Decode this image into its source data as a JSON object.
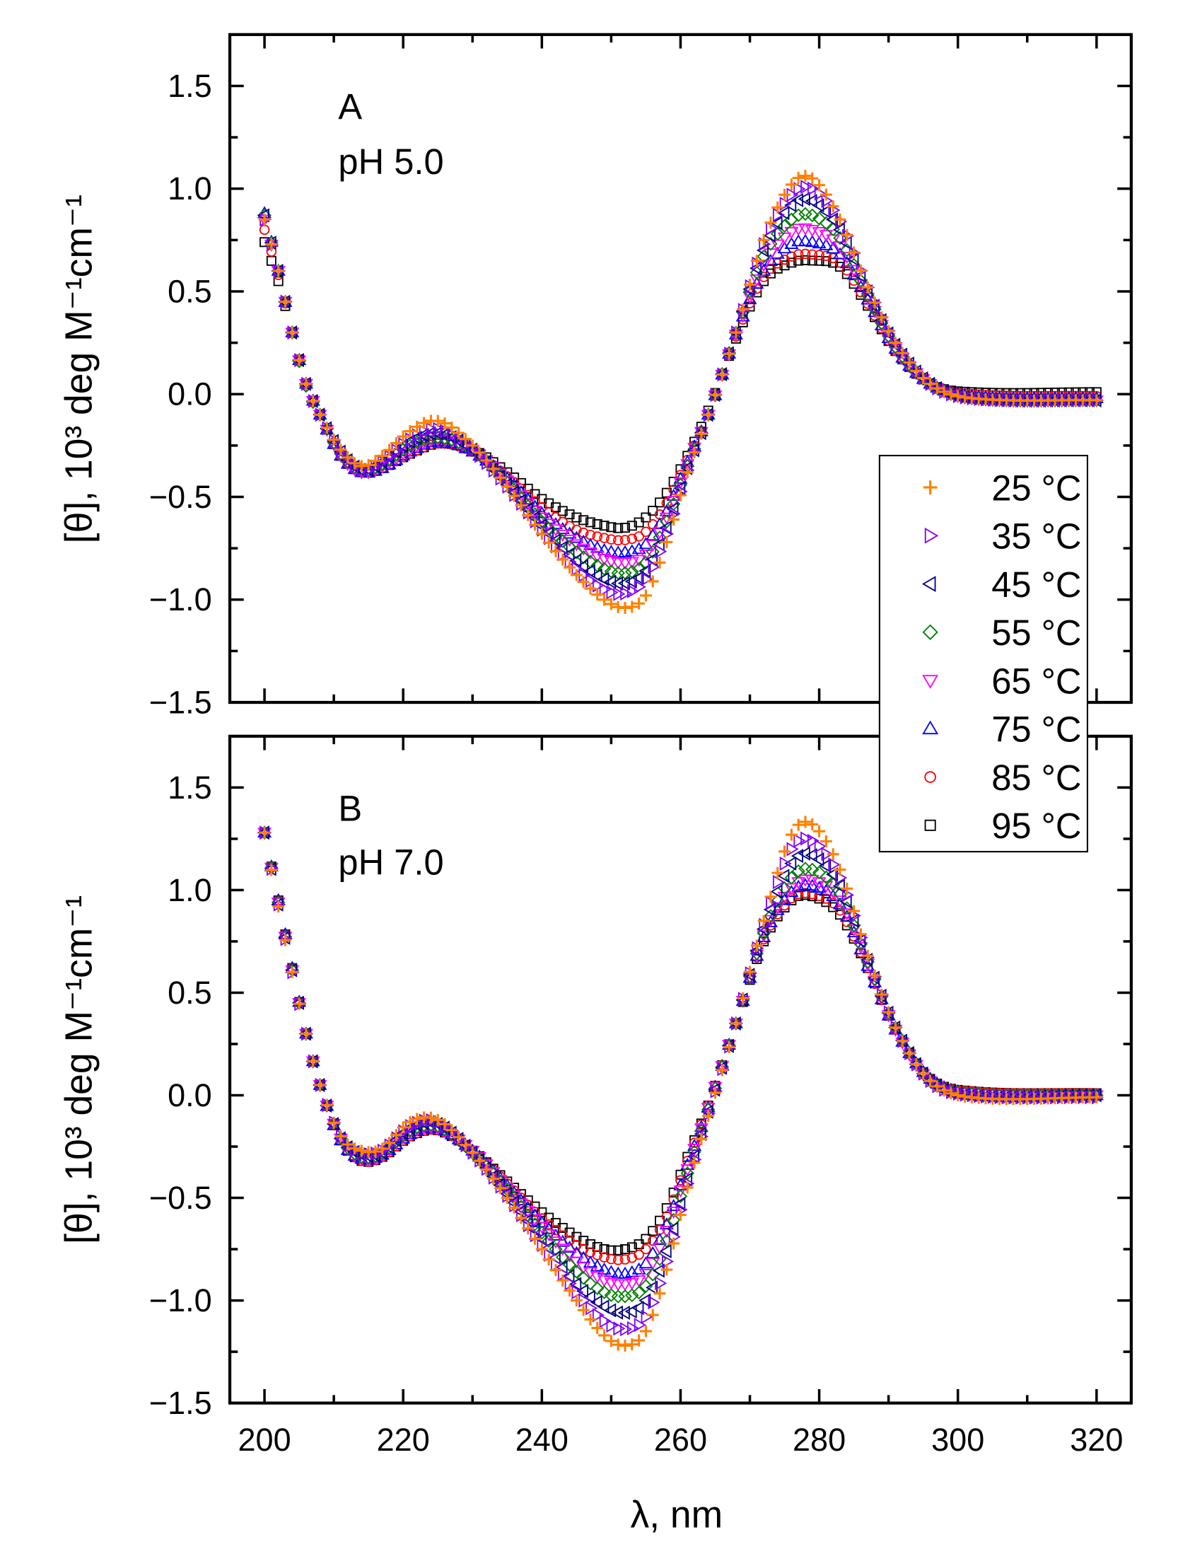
{
  "chart_data": {
    "type": "scatter",
    "xlabel": "λ, nm",
    "ylabel": "[θ], 10³ deg M⁻¹cm⁻¹",
    "xlim": [
      195,
      325
    ],
    "ylim": [
      -1.5,
      1.75
    ],
    "xticks": [
      "200",
      "220",
      "240",
      "260",
      "280",
      "300",
      "320"
    ],
    "yticks": [
      "1.5",
      "1.0",
      "0.5",
      "0.0",
      "−0.5",
      "−1.0",
      "−1.5"
    ],
    "legend_position": "right, spanning both panels",
    "legend": [
      {
        "name": "25 °C",
        "marker": "plus",
        "color": "#FF8000"
      },
      {
        "name": "35 °C",
        "marker": "triangle-right",
        "color": "#8000FF"
      },
      {
        "name": "45 °C",
        "marker": "triangle-left",
        "color": "#000080"
      },
      {
        "name": "55 °C",
        "marker": "diamond",
        "color": "#008000"
      },
      {
        "name": "65 °C",
        "marker": "triangle-down",
        "color": "#FF00FF"
      },
      {
        "name": "75 °C",
        "marker": "triangle-up",
        "color": "#0000FF"
      },
      {
        "name": "85 °C",
        "marker": "circle",
        "color": "#FF0000"
      },
      {
        "name": "95 °C",
        "marker": "square",
        "color": "#000000"
      }
    ],
    "x": [
      200,
      202,
      204,
      206,
      208,
      211,
      214,
      217,
      221,
      225,
      230,
      235,
      240,
      245,
      249,
      252,
      255,
      258,
      261,
      264,
      268,
      272,
      276,
      279,
      283,
      287,
      291,
      296,
      302,
      320
    ],
    "panels": [
      {
        "letter": "A",
        "condition": "pH 5.0",
        "series": [
          {
            "name": "25 °C",
            "values": [
              0.85,
              0.6,
              0.3,
              0.05,
              -0.1,
              -0.27,
              -0.35,
              -0.3,
              -0.18,
              -0.13,
              -0.25,
              -0.45,
              -0.68,
              -0.88,
              -1.0,
              -1.04,
              -0.98,
              -0.72,
              -0.38,
              -0.1,
              0.3,
              0.75,
              1.02,
              1.05,
              0.85,
              0.52,
              0.25,
              0.05,
              -0.02,
              -0.03
            ]
          },
          {
            "name": "35 °C",
            "values": [
              0.85,
              0.6,
              0.3,
              0.05,
              -0.1,
              -0.28,
              -0.37,
              -0.33,
              -0.22,
              -0.17,
              -0.27,
              -0.45,
              -0.66,
              -0.85,
              -0.95,
              -0.97,
              -0.9,
              -0.68,
              -0.37,
              -0.1,
              0.3,
              0.73,
              0.97,
              1.0,
              0.84,
              0.52,
              0.25,
              0.05,
              -0.02,
              -0.03
            ]
          },
          {
            "name": "45 °C",
            "values": [
              0.87,
              0.6,
              0.3,
              0.05,
              -0.1,
              -0.28,
              -0.37,
              -0.33,
              -0.23,
              -0.19,
              -0.27,
              -0.44,
              -0.64,
              -0.81,
              -0.9,
              -0.92,
              -0.86,
              -0.65,
              -0.36,
              -0.1,
              0.3,
              0.7,
              0.92,
              0.94,
              0.8,
              0.5,
              0.24,
              0.05,
              -0.02,
              -0.03
            ]
          },
          {
            "name": "55 °C",
            "values": [
              0.87,
              0.6,
              0.3,
              0.04,
              -0.1,
              -0.29,
              -0.37,
              -0.34,
              -0.25,
              -0.21,
              -0.27,
              -0.43,
              -0.62,
              -0.77,
              -0.85,
              -0.87,
              -0.82,
              -0.62,
              -0.35,
              -0.1,
              0.3,
              0.67,
              0.85,
              0.87,
              0.76,
              0.48,
              0.23,
              0.05,
              -0.02,
              -0.03
            ]
          },
          {
            "name": "65 °C",
            "values": [
              0.85,
              0.6,
              0.3,
              0.05,
              -0.1,
              -0.3,
              -0.38,
              -0.35,
              -0.27,
              -0.22,
              -0.27,
              -0.42,
              -0.6,
              -0.73,
              -0.8,
              -0.82,
              -0.78,
              -0.6,
              -0.34,
              -0.1,
              0.29,
              0.63,
              0.79,
              0.8,
              0.72,
              0.47,
              0.22,
              0.05,
              -0.02,
              -0.03
            ]
          },
          {
            "name": "75 °C",
            "values": [
              0.88,
              0.6,
              0.3,
              0.05,
              -0.1,
              -0.3,
              -0.38,
              -0.36,
              -0.28,
              -0.23,
              -0.28,
              -0.41,
              -0.58,
              -0.7,
              -0.76,
              -0.77,
              -0.73,
              -0.57,
              -0.33,
              -0.1,
              0.29,
              0.6,
              0.73,
              0.74,
              0.68,
              0.46,
              0.22,
              0.05,
              -0.01,
              -0.02
            ]
          },
          {
            "name": "85 °C",
            "values": [
              0.8,
              0.58,
              0.3,
              0.05,
              -0.1,
              -0.3,
              -0.38,
              -0.36,
              -0.29,
              -0.24,
              -0.28,
              -0.4,
              -0.55,
              -0.66,
              -0.7,
              -0.71,
              -0.67,
              -0.53,
              -0.32,
              -0.1,
              0.28,
              0.57,
              0.67,
              0.68,
              0.64,
              0.44,
              0.21,
              0.05,
              0.0,
              -0.01
            ]
          },
          {
            "name": "95 °C",
            "values": [
              0.74,
              0.55,
              0.3,
              0.05,
              -0.1,
              -0.3,
              -0.38,
              -0.36,
              -0.29,
              -0.24,
              -0.27,
              -0.38,
              -0.51,
              -0.6,
              -0.64,
              -0.65,
              -0.6,
              -0.48,
              -0.3,
              -0.08,
              0.27,
              0.55,
              0.64,
              0.65,
              0.62,
              0.43,
              0.21,
              0.05,
              0.01,
              0.01
            ]
          }
        ]
      },
      {
        "letter": "B",
        "condition": "pH 7.0",
        "series": [
          {
            "name": "25 °C",
            "values": [
              1.28,
              0.92,
              0.6,
              0.3,
              0.05,
              -0.2,
              -0.27,
              -0.26,
              -0.13,
              -0.12,
              -0.28,
              -0.5,
              -0.75,
              -1.0,
              -1.17,
              -1.22,
              -1.15,
              -0.85,
              -0.45,
              -0.1,
              0.35,
              0.85,
              1.27,
              1.32,
              1.1,
              0.68,
              0.33,
              0.07,
              -0.01,
              -0.01
            ]
          },
          {
            "name": "35 °C",
            "values": [
              1.28,
              0.93,
              0.6,
              0.3,
              0.05,
              -0.2,
              -0.28,
              -0.27,
              -0.15,
              -0.13,
              -0.28,
              -0.49,
              -0.73,
              -0.96,
              -1.1,
              -1.14,
              -1.08,
              -0.81,
              -0.43,
              -0.09,
              0.35,
              0.83,
              1.2,
              1.24,
              1.06,
              0.67,
              0.33,
              0.07,
              0.0,
              -0.01
            ]
          },
          {
            "name": "45 °C",
            "values": [
              1.28,
              0.93,
              0.61,
              0.3,
              0.05,
              -0.21,
              -0.29,
              -0.28,
              -0.16,
              -0.14,
              -0.28,
              -0.48,
              -0.7,
              -0.92,
              -1.03,
              -1.06,
              -1.0,
              -0.76,
              -0.41,
              -0.08,
              0.35,
              0.81,
              1.13,
              1.17,
              1.02,
              0.66,
              0.33,
              0.07,
              0.0,
              0.0
            ]
          },
          {
            "name": "55 °C",
            "values": [
              1.28,
              0.94,
              0.61,
              0.3,
              0.05,
              -0.21,
              -0.3,
              -0.28,
              -0.17,
              -0.15,
              -0.28,
              -0.46,
              -0.67,
              -0.86,
              -0.96,
              -0.98,
              -0.93,
              -0.71,
              -0.38,
              -0.07,
              0.35,
              0.79,
              1.06,
              1.1,
              0.98,
              0.65,
              0.33,
              0.07,
              0.01,
              0.0
            ]
          },
          {
            "name": "65 °C",
            "values": [
              1.28,
              0.94,
              0.61,
              0.3,
              0.05,
              -0.21,
              -0.31,
              -0.29,
              -0.18,
              -0.16,
              -0.27,
              -0.45,
              -0.64,
              -0.81,
              -0.9,
              -0.92,
              -0.87,
              -0.66,
              -0.36,
              -0.06,
              0.35,
              0.78,
              1.01,
              1.05,
              0.95,
              0.64,
              0.32,
              0.07,
              0.01,
              0.0
            ]
          },
          {
            "name": "75 °C",
            "values": [
              1.28,
              0.95,
              0.62,
              0.3,
              0.05,
              -0.22,
              -0.31,
              -0.29,
              -0.19,
              -0.16,
              -0.27,
              -0.44,
              -0.62,
              -0.77,
              -0.85,
              -0.87,
              -0.82,
              -0.63,
              -0.34,
              -0.06,
              0.35,
              0.77,
              0.99,
              1.02,
              0.93,
              0.63,
              0.32,
              0.08,
              0.01,
              0.0
            ]
          },
          {
            "name": "85 °C",
            "values": [
              1.28,
              0.95,
              0.62,
              0.3,
              0.05,
              -0.22,
              -0.32,
              -0.3,
              -0.2,
              -0.17,
              -0.27,
              -0.43,
              -0.6,
              -0.73,
              -0.79,
              -0.8,
              -0.75,
              -0.59,
              -0.32,
              -0.05,
              0.35,
              0.76,
              0.96,
              0.98,
              0.9,
              0.62,
              0.32,
              0.08,
              0.02,
              0.01
            ]
          },
          {
            "name": "95 °C",
            "values": [
              1.28,
              0.95,
              0.62,
              0.3,
              0.05,
              -0.22,
              -0.32,
              -0.3,
              -0.2,
              -0.17,
              -0.27,
              -0.42,
              -0.57,
              -0.69,
              -0.75,
              -0.75,
              -0.7,
              -0.55,
              -0.3,
              -0.05,
              0.35,
              0.75,
              0.95,
              0.97,
              0.88,
              0.62,
              0.32,
              0.08,
              0.02,
              0.01
            ]
          }
        ]
      }
    ]
  }
}
